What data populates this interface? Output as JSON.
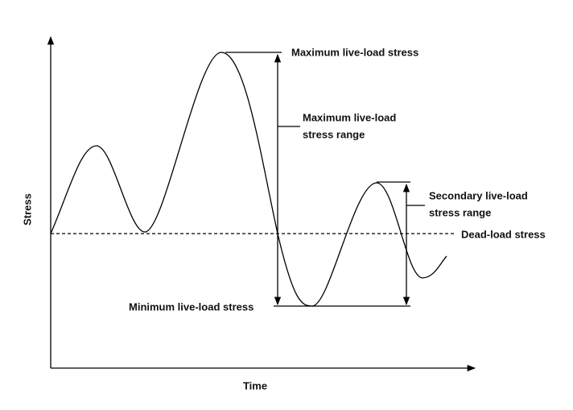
{
  "axes": {
    "x_label": "Time",
    "y_label": "Stress"
  },
  "annotations": {
    "max_stress": "Maximum live-load stress",
    "max_range": [
      "Maximum live-load",
      "stress range"
    ],
    "secondary_range": [
      "Secondary live-load",
      "stress range"
    ],
    "dead_load": "Dead-load stress",
    "min_stress": "Minimum live-load stress"
  }
}
